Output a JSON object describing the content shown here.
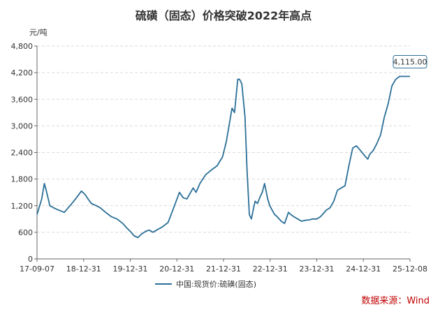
{
  "chart_data": {
    "type": "line",
    "title": "硫磺（固态）价格突破2022年高点",
    "unit_label": "元/吨",
    "y_ticks": [
      "0",
      "600",
      "1,200",
      "1,800",
      "2,400",
      "3,000",
      "3,600",
      "4,200",
      "4,800"
    ],
    "ylim": [
      0,
      4800
    ],
    "x_ticks": [
      "17-09-07",
      "18-12-31",
      "19-12-31",
      "20-12-31",
      "21-12-31",
      "22-12-31",
      "23-12-31",
      "24-12-31",
      "25-12-08"
    ],
    "grid": "horizontal dashed",
    "legend_position": "bottom",
    "series": [
      {
        "name": "中国:现货价:硫磺(固态)",
        "color": "#2b6f97",
        "x": [
          "2017-09-07",
          "2017-10-15",
          "2017-11-05",
          "2017-11-20",
          "2017-12-20",
          "2018-01-20",
          "2018-03-01",
          "2018-04-15",
          "2018-06-01",
          "2018-07-15",
          "2018-09-01",
          "2018-10-01",
          "2018-11-01",
          "2018-11-20",
          "2018-12-31",
          "2019-02-01",
          "2019-03-15",
          "2019-05-01",
          "2019-06-15",
          "2019-08-01",
          "2019-09-01",
          "2019-10-01",
          "2019-11-01",
          "2019-12-01",
          "2019-12-31",
          "2020-02-01",
          "2020-03-01",
          "2020-04-01",
          "2020-05-01",
          "2020-06-15",
          "2020-08-01",
          "2020-09-15",
          "2020-11-01",
          "2020-12-01",
          "2020-12-31",
          "2021-01-20",
          "2021-02-20",
          "2021-03-15",
          "2021-04-15",
          "2021-06-01",
          "2021-07-15",
          "2021-09-01",
          "2021-10-15",
          "2021-11-15",
          "2021-12-31",
          "2022-01-20",
          "2022-02-15",
          "2022-03-01",
          "2022-03-20",
          "2022-04-15",
          "2022-05-01",
          "2022-05-20",
          "2022-06-05",
          "2022-06-20",
          "2022-07-05",
          "2022-07-25",
          "2022-08-15",
          "2022-09-01",
          "2022-09-20",
          "2022-10-15",
          "2022-11-01",
          "2022-11-20",
          "2022-12-10",
          "2022-12-31",
          "2023-02-01",
          "2023-03-01",
          "2023-04-01",
          "2023-04-20",
          "2023-05-15",
          "2023-06-15",
          "2023-07-15",
          "2023-08-15",
          "2023-09-15",
          "2023-10-15",
          "2023-11-15",
          "2023-12-15",
          "2023-12-31",
          "2024-02-01",
          "2024-03-01",
          "2024-04-01",
          "2024-05-01",
          "2024-06-01",
          "2024-07-01",
          "2024-08-01",
          "2024-09-01",
          "2024-10-01",
          "2024-11-01",
          "2024-12-15",
          "2025-01-01",
          "2025-01-15",
          "2025-02-15",
          "2025-03-15",
          "2025-04-15",
          "2025-05-15",
          "2025-06-15",
          "2025-07-15",
          "2025-08-15",
          "2025-09-15",
          "2025-10-15",
          "2025-11-01",
          "2025-11-15",
          "2025-12-01",
          "2025-12-08"
        ],
        "values": [
          1000,
          1350,
          1700,
          1550,
          1200,
          1150,
          1100,
          1050,
          1200,
          1350,
          1530,
          1450,
          1320,
          1250,
          1200,
          1150,
          1050,
          950,
          900,
          800,
          700,
          620,
          520,
          480,
          560,
          620,
          650,
          600,
          650,
          720,
          820,
          1150,
          1500,
          1380,
          1350,
          1450,
          1600,
          1500,
          1700,
          1900,
          2000,
          2100,
          2300,
          2650,
          3400,
          3300,
          4050,
          4050,
          3950,
          3200,
          2000,
          1000,
          900,
          1100,
          1300,
          1250,
          1400,
          1500,
          1700,
          1350,
          1200,
          1100,
          1000,
          950,
          850,
          800,
          1050,
          1000,
          950,
          900,
          850,
          870,
          880,
          900,
          900,
          950,
          1000,
          1100,
          1150,
          1300,
          1550,
          1600,
          1650,
          2100,
          2500,
          2550,
          2450,
          2300,
          2250,
          2350,
          2450,
          2600,
          2800,
          3200,
          3500,
          3900,
          4050,
          4115,
          4115,
          4115,
          4115,
          4115,
          4115
        ]
      }
    ],
    "last_value_label": "4,115.00",
    "source": "数据来源：Wind"
  }
}
